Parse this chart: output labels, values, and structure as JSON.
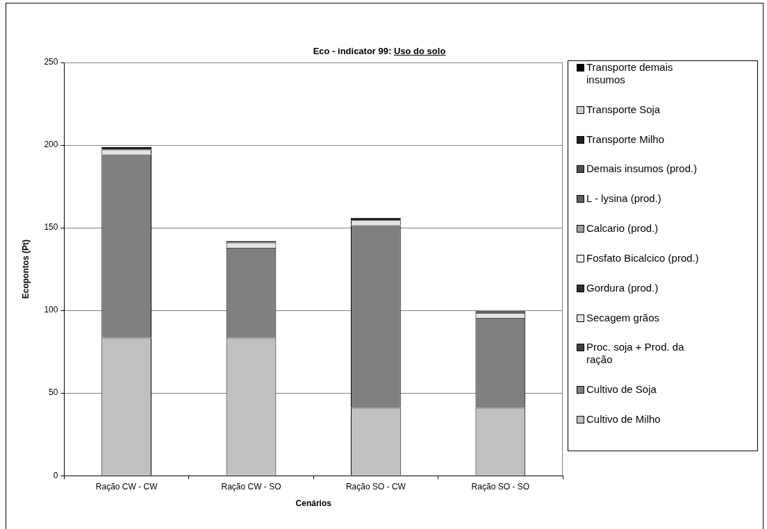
{
  "chart_data": {
    "type": "bar",
    "title": "Eco - indicator 99: Uso do solo",
    "xlabel": "Cenários",
    "ylabel": "Ecopontos (Pt)",
    "categories": [
      "Ração CW - CW",
      "Ração CW - SO",
      "Ração SO - CW",
      "Ração SO - SO"
    ],
    "stacked": true,
    "ylim": [
      0,
      250
    ],
    "yticks": [
      0,
      50,
      100,
      150,
      200,
      250
    ],
    "grid": "y",
    "legend": "right",
    "series": [
      {
        "name": "Cultivo de Milho",
        "color": "#c0c0c0",
        "values": [
          83.5,
          83.5,
          41,
          41
        ]
      },
      {
        "name": "Cultivo de Soja",
        "color": "#808080",
        "values": [
          110.8,
          54.5,
          110.5,
          54.5
        ]
      },
      {
        "name": "Proc. soja + Prod. da ração",
        "color": "#404040",
        "values": [
          null,
          null,
          null,
          null
        ]
      },
      {
        "name": "Secagem grãos",
        "color": "#e4e4e4",
        "values": [
          3,
          3,
          3,
          3
        ]
      },
      {
        "name": "Gordura (prod.)",
        "color": "#303030",
        "values": [
          null,
          null,
          null,
          null
        ]
      },
      {
        "name": "Fosfato Bicalcico (prod.)",
        "color": "#f0f0f0",
        "values": [
          null,
          null,
          null,
          null
        ]
      },
      {
        "name": "Calcario (prod.)",
        "color": "#a0a0a0",
        "values": [
          null,
          null,
          null,
          null
        ]
      },
      {
        "name": "L - lysina (prod.)",
        "color": "#606060",
        "values": [
          null,
          null,
          null,
          null
        ]
      },
      {
        "name": "Demais insumos (prod.)",
        "color": "#505050",
        "values": [
          null,
          null,
          null,
          null
        ]
      },
      {
        "name": "Transporte Milho",
        "color": "#202020",
        "values": [
          1.5,
          1,
          1.5,
          1
        ]
      },
      {
        "name": "Transporte Soja",
        "color": "#d0d0d0",
        "values": [
          null,
          null,
          null,
          null
        ]
      },
      {
        "name": "Transporte demais insumos",
        "color": "#000000",
        "values": [
          null,
          null,
          null,
          null
        ]
      }
    ]
  }
}
